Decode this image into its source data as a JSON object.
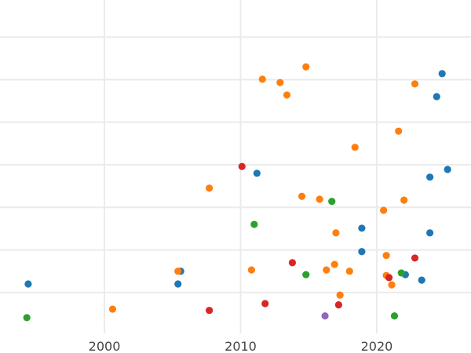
{
  "chart_data": {
    "type": "scatter",
    "title": "",
    "xlabel": "",
    "ylabel": "",
    "xlim": [
      1992.33,
      2026.92
    ],
    "ylim": [
      -0.96,
      6.87
    ],
    "x_ticks": [
      2000,
      2010,
      2020
    ],
    "x_tick_labels": [
      "2000",
      "2010",
      "2020"
    ],
    "y_gridlines": [
      0,
      1,
      2,
      3,
      4,
      5,
      6
    ],
    "y_tick_labels_shown": false,
    "grid": true,
    "legend": "none",
    "series": [
      {
        "color": "#1f77b4",
        "points": [
          [
            1994.4,
            0.2
          ],
          [
            2005.6,
            0.5
          ],
          [
            2005.4,
            0.2
          ],
          [
            2011.2,
            2.8
          ],
          [
            2018.9,
            1.51
          ],
          [
            2018.9,
            0.96
          ],
          [
            2022.1,
            0.42
          ],
          [
            2023.3,
            0.29
          ],
          [
            2023.9,
            2.71
          ],
          [
            2023.9,
            1.4
          ],
          [
            2024.4,
            4.6
          ],
          [
            2024.8,
            5.14
          ],
          [
            2025.2,
            2.89
          ]
        ]
      },
      {
        "color": "#ff7f0e",
        "points": [
          [
            2014.8,
            5.3
          ],
          [
            2011.6,
            5.01
          ],
          [
            2012.9,
            4.93
          ],
          [
            2013.4,
            4.64
          ],
          [
            2022.8,
            4.9
          ],
          [
            2021.6,
            3.79
          ],
          [
            2018.4,
            3.41
          ],
          [
            2007.7,
            2.45
          ],
          [
            2014.5,
            2.26
          ],
          [
            2015.8,
            2.19
          ],
          [
            2020.5,
            1.93
          ],
          [
            2022.0,
            2.17
          ],
          [
            2017.0,
            1.4
          ],
          [
            2020.7,
            0.87
          ],
          [
            2010.8,
            0.53
          ],
          [
            2005.4,
            0.5
          ],
          [
            2016.3,
            0.53
          ],
          [
            2016.9,
            0.66
          ],
          [
            2018.0,
            0.5
          ],
          [
            2020.7,
            0.4
          ],
          [
            2021.1,
            0.18
          ],
          [
            2017.3,
            -0.06
          ],
          [
            2000.6,
            -0.39
          ]
        ]
      },
      {
        "color": "#2ca02c",
        "points": [
          [
            2016.7,
            2.14
          ],
          [
            2011.0,
            1.6
          ],
          [
            2014.8,
            0.42
          ],
          [
            2021.8,
            0.46
          ],
          [
            1994.3,
            -0.59
          ],
          [
            2021.3,
            -0.55
          ]
        ]
      },
      {
        "color": "#d62728",
        "points": [
          [
            2010.1,
            2.96
          ],
          [
            2013.8,
            0.7
          ],
          [
            2022.8,
            0.81
          ],
          [
            2020.9,
            0.35
          ],
          [
            2011.8,
            -0.26
          ],
          [
            2007.7,
            -0.42
          ],
          [
            2017.2,
            -0.29
          ]
        ]
      },
      {
        "color": "#9467bd",
        "points": [
          [
            2016.2,
            -0.55
          ]
        ]
      }
    ]
  }
}
